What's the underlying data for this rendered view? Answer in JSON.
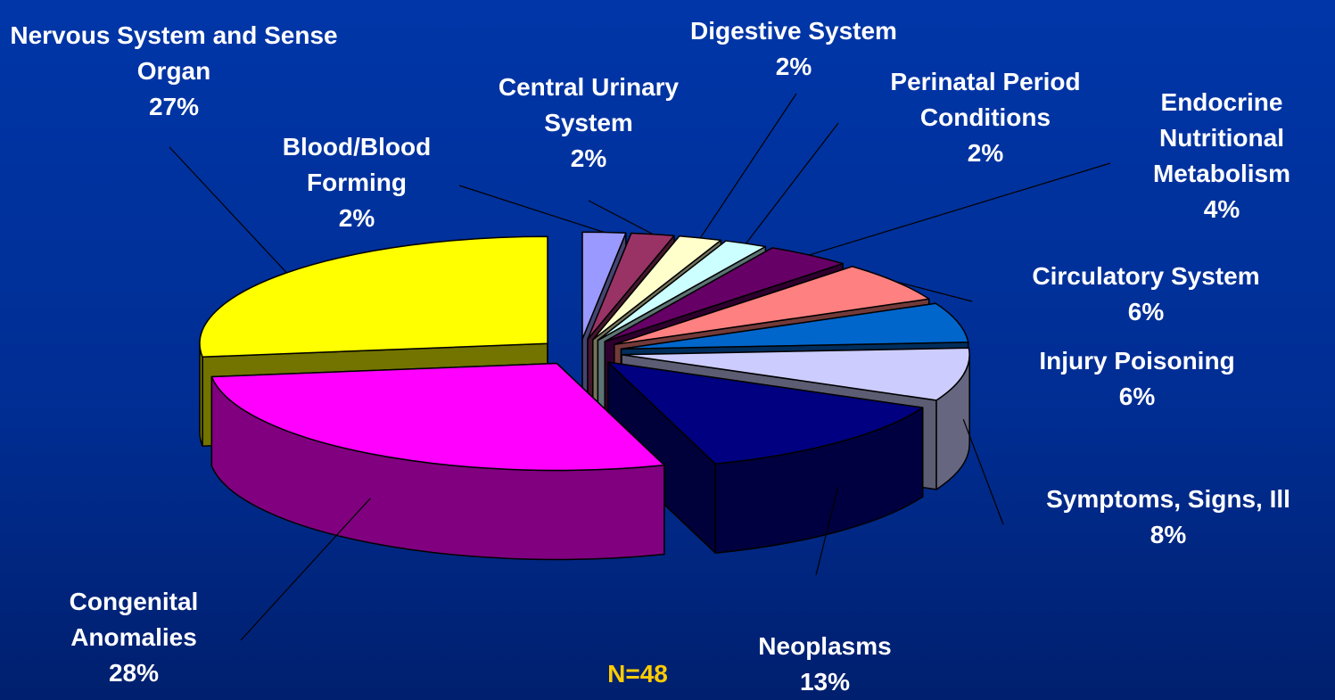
{
  "chart_data": {
    "type": "pie3d",
    "categories": [
      "Blood/Blood Forming",
      "Central Urinary System",
      "Digestive System",
      "Perinatal Period Conditions",
      "Endocrine Nutritional Metabolism",
      "Circulatory System",
      "Injury Poisoning",
      "Symptoms, Signs, Ill",
      "Neoplasms",
      "Congenital Anomalies",
      "Nervous System and Sense Organ"
    ],
    "values": [
      2,
      2,
      2,
      2,
      4,
      6,
      6,
      8,
      13,
      28,
      27
    ],
    "value_labels": [
      "2%",
      "2%",
      "2%",
      "2%",
      "4%",
      "6%",
      "6%",
      "8%",
      "13%",
      "28%",
      "27%"
    ],
    "colors": [
      "#9999ff",
      "#993366",
      "#ffffcc",
      "#ccffff",
      "#660066",
      "#ff8080",
      "#0066cc",
      "#ccccff",
      "#000080",
      "#ff00ff",
      "#ffff00"
    ],
    "annotation": "N=48"
  }
}
